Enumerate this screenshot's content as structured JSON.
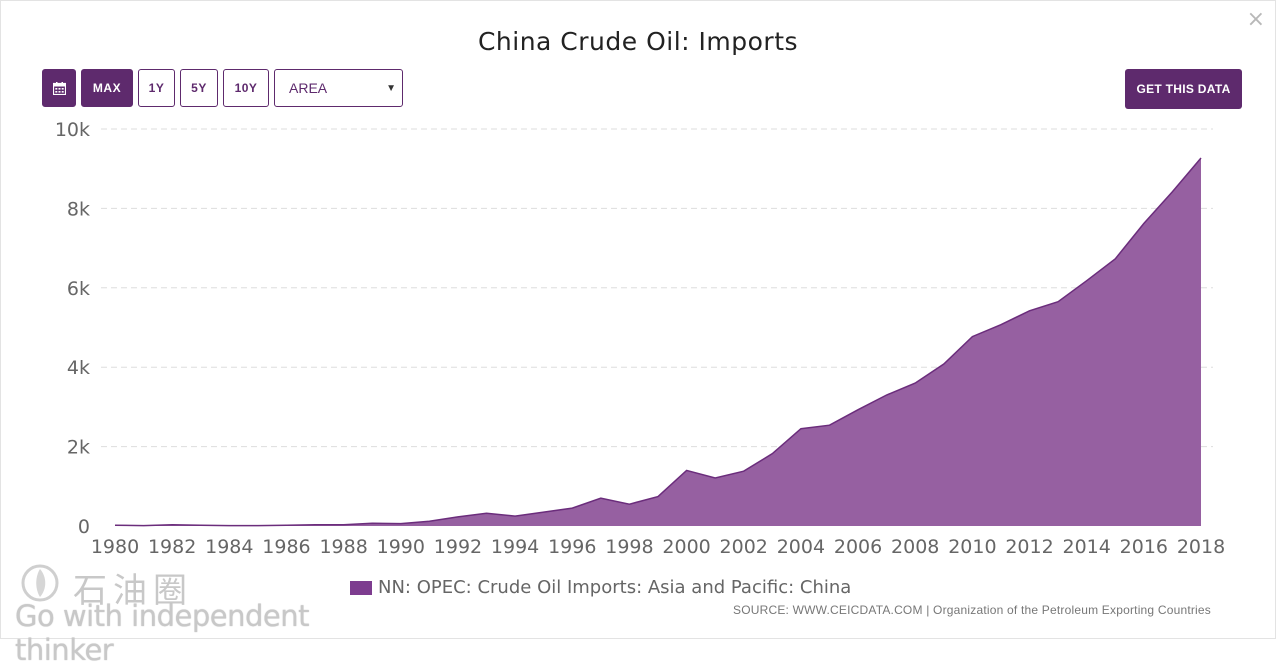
{
  "close_label": "×",
  "title": "China Crude Oil: Imports",
  "toolbar": {
    "calendar_icon": "calendar-icon",
    "max_label": "MAX",
    "one_year_label": "1Y",
    "five_year_label": "5Y",
    "ten_year_label": "10Y",
    "chart_type_value": "AREA",
    "get_data_label": "GET THIS DATA"
  },
  "colors": {
    "brand": "#5e2a6d",
    "area_fill": "#9660a1",
    "area_line": "#6b2d7c",
    "legend_swatch": "#7d3c8f"
  },
  "chart_data": {
    "type": "area",
    "title": "China Crude Oil: Imports",
    "x": [
      1980,
      1981,
      1982,
      1983,
      1984,
      1985,
      1986,
      1987,
      1988,
      1989,
      1990,
      1991,
      1992,
      1993,
      1994,
      1995,
      1996,
      1997,
      1998,
      1999,
      2000,
      2001,
      2002,
      2003,
      2004,
      2005,
      2006,
      2007,
      2008,
      2009,
      2010,
      2011,
      2012,
      2013,
      2014,
      2015,
      2016,
      2017,
      2018
    ],
    "series": [
      {
        "name": "NN: OPEC: Crude Oil Imports: Asia and Pacific: China",
        "values": [
          20,
          10,
          30,
          20,
          10,
          10,
          20,
          30,
          30,
          70,
          60,
          120,
          230,
          320,
          250,
          350,
          450,
          700,
          550,
          740,
          1400,
          1210,
          1380,
          1820,
          2450,
          2540,
          2930,
          3300,
          3600,
          4080,
          4770,
          5070,
          5420,
          5650,
          6180,
          6730,
          7620,
          8420,
          9270
        ]
      }
    ],
    "x_ticks": [
      "1980",
      "1982",
      "1984",
      "1986",
      "1988",
      "1990",
      "1992",
      "1994",
      "1996",
      "1998",
      "2000",
      "2002",
      "2004",
      "2006",
      "2008",
      "2010",
      "2012",
      "2014",
      "2016",
      "2018"
    ],
    "y_ticks": [
      {
        "value": 0,
        "label": "0"
      },
      {
        "value": 2000,
        "label": "2k"
      },
      {
        "value": 4000,
        "label": "4k"
      },
      {
        "value": 6000,
        "label": "6k"
      },
      {
        "value": 8000,
        "label": "8k"
      },
      {
        "value": 10000,
        "label": "10k"
      }
    ],
    "ylim": [
      0,
      10000
    ],
    "grid": true,
    "legend_position": "bottom"
  },
  "source": "SOURCE: WWW.CEICDATA.COM | Organization of the Petroleum Exporting Countries",
  "watermark": {
    "line1": "石油圈",
    "line2": "Go with independent thinker"
  }
}
